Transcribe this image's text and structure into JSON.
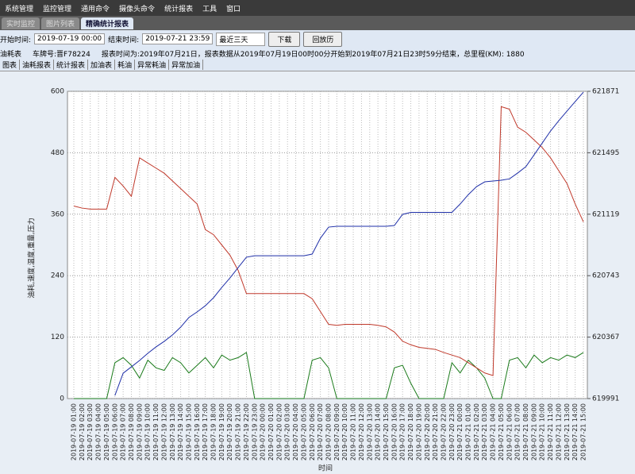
{
  "menu": [
    "系统管理",
    "监控管理",
    "通用命令",
    "摄像头命令",
    "统计报表",
    "工具",
    "窗口"
  ],
  "tabs": [
    "实时监控",
    "图片列表",
    "精确统计报表"
  ],
  "toolbar": {
    "start_label": "开始时间:",
    "start": "2019-07-19 00:00",
    "end_label": "结束时间:",
    "end": "2019-07-21 23:59",
    "range": "最近三天",
    "download": "下载",
    "playback": "回放历"
  },
  "info": {
    "title": "油耗表",
    "plate": "车牌号:晋F78224",
    "report": "报表时间为:2019年07月21日，报表数据从2019年07月19日00时00分开始到2019年07月21日23时59分结束，总里程(KM): 1880"
  },
  "subtabs": [
    "图表",
    "油耗报表",
    "统计报表",
    "加油表",
    "耗油",
    "异常耗油",
    "异常加油"
  ],
  "chart_data": {
    "type": "line",
    "y_label": "油耗,速度,温度,重量,压力",
    "x_label": "时间",
    "categories": [
      "2019-07-19 01:00",
      "2019-07-19 02:00",
      "2019-07-19 03:00",
      "2019-07-19 04:00",
      "2019-07-19 05:00",
      "2019-07-19 06:00",
      "2019-07-19 07:00",
      "2019-07-19 08:00",
      "2019-07-19 09:00",
      "2019-07-19 10:00",
      "2019-07-19 11:00",
      "2019-07-19 12:00",
      "2019-07-19 13:00",
      "2019-07-19 14:00",
      "2019-07-19 15:00",
      "2019-07-19 16:00",
      "2019-07-19 17:00",
      "2019-07-19 18:00",
      "2019-07-19 19:00",
      "2019-07-19 20:00",
      "2019-07-19 21:00",
      "2019-07-19 22:00",
      "2019-07-19 23:00",
      "2019-07-20 00:00",
      "2019-07-20 01:00",
      "2019-07-20 02:00",
      "2019-07-20 03:00",
      "2019-07-20 04:00",
      "2019-07-20 05:00",
      "2019-07-20 06:00",
      "2019-07-20 07:00",
      "2019-07-20 08:00",
      "2019-07-20 09:00",
      "2019-07-20 10:00",
      "2019-07-20 11:00",
      "2019-07-20 12:00",
      "2019-07-20 13:00",
      "2019-07-20 14:00",
      "2019-07-20 15:00",
      "2019-07-20 16:00",
      "2019-07-20 17:00",
      "2019-07-20 18:00",
      "2019-07-20 19:00",
      "2019-07-20 20:00",
      "2019-07-20 21:00",
      "2019-07-20 22:00",
      "2019-07-20 23:00",
      "2019-07-21 00:00",
      "2019-07-21 01:00",
      "2019-07-21 02:00",
      "2019-07-21 03:00",
      "2019-07-21 04:00",
      "2019-07-21 05:00",
      "2019-07-21 06:00",
      "2019-07-21 07:00",
      "2019-07-21 08:00",
      "2019-07-21 09:00",
      "2019-07-21 10:00",
      "2019-07-21 11:00",
      "2019-07-21 12:00",
      "2019-07-21 13:00",
      "2019-07-21 14:00",
      "2019-07-21 15:00"
    ],
    "ylim": [
      0,
      600
    ],
    "yticks": [
      0,
      120,
      240,
      360,
      480,
      600
    ],
    "y2lim": [
      619991,
      621871
    ],
    "y2ticks": [
      619991,
      620367,
      620743,
      621119,
      621495,
      621871
    ],
    "grid": true,
    "series": [
      {
        "color": "#1a7a1a",
        "values": [
          0,
          0,
          0,
          0,
          0,
          70,
          80,
          65,
          40,
          75,
          60,
          55,
          80,
          70,
          50,
          65,
          80,
          60,
          85,
          75,
          80,
          90,
          0,
          0,
          0,
          0,
          0,
          0,
          0,
          75,
          80,
          60,
          0,
          0,
          0,
          0,
          0,
          0,
          0,
          60,
          65,
          30,
          0,
          0,
          0,
          0,
          70,
          50,
          75,
          60,
          40,
          0,
          0,
          75,
          80,
          60,
          85,
          70,
          80,
          75,
          85,
          80,
          90
        ]
      },
      {
        "color": "#c0392b",
        "values": [
          376,
          372,
          370,
          370,
          370,
          432,
          415,
          395,
          470,
          460,
          450,
          440,
          425,
          410,
          395,
          380,
          330,
          320,
          300,
          280,
          250,
          205,
          205,
          205,
          205,
          205,
          205,
          205,
          205,
          195,
          170,
          145,
          143,
          145,
          145,
          145,
          145,
          143,
          140,
          130,
          112,
          105,
          100,
          98,
          96,
          90,
          85,
          80,
          70,
          60,
          50,
          45,
          570,
          565,
          530,
          520,
          505,
          490,
          470,
          445,
          420,
          380,
          345
        ]
      },
      {
        "color": "#1f2fa8",
        "axis": "y2",
        "values": [
          null,
          null,
          null,
          null,
          null,
          620010,
          620146,
          620185,
          620224,
          620268,
          620307,
          620341,
          620380,
          620428,
          620487,
          620521,
          620559,
          620608,
          620671,
          620729,
          620793,
          620856,
          620865,
          620865,
          620865,
          620865,
          620865,
          620865,
          620865,
          620875,
          620972,
          621040,
          621045,
          621045,
          621045,
          621045,
          621045,
          621045,
          621045,
          621050,
          621118,
          621130,
          621130,
          621130,
          621130,
          621130,
          621130,
          621181,
          621239,
          621288,
          621317,
          621322,
          621327,
          621335,
          621371,
          621410,
          621482,
          621555,
          621628,
          621691,
          621750,
          621808,
          621866
        ]
      }
    ]
  }
}
